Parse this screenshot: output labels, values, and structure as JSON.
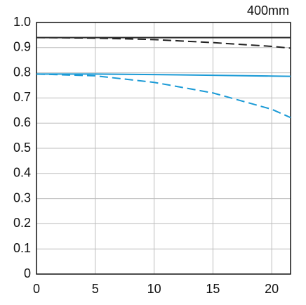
{
  "chart_data": {
    "type": "line",
    "title": "400mm",
    "x": [
      0,
      5,
      10,
      15,
      20,
      21.6
    ],
    "series": [
      {
        "color": "#222222",
        "linestyle": "solid",
        "values": [
          0.94,
          0.94,
          0.94,
          0.94,
          0.94,
          0.94
        ]
      },
      {
        "color": "#222222",
        "linestyle": "dashed",
        "values": [
          0.94,
          0.938,
          0.932,
          0.92,
          0.905,
          0.898
        ]
      },
      {
        "color": "#1a9ad6",
        "linestyle": "solid",
        "values": [
          0.795,
          0.795,
          0.793,
          0.79,
          0.787,
          0.786
        ]
      },
      {
        "color": "#1a9ad6",
        "linestyle": "dashed",
        "values": [
          0.795,
          0.788,
          0.762,
          0.72,
          0.655,
          0.622
        ]
      }
    ],
    "xlim": [
      0,
      21.6
    ],
    "xticks": [
      0,
      5,
      10,
      15,
      20
    ],
    "ylim": [
      0,
      1
    ],
    "yticks": [
      0,
      0.1,
      0.2,
      0.3,
      0.4,
      0.5,
      0.6,
      0.7,
      0.8,
      0.9,
      {
        "value": 1,
        "label": "1.0"
      }
    ],
    "grid": true
  }
}
